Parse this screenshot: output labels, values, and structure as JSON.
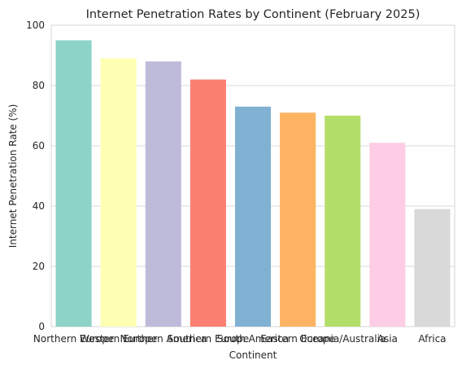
{
  "chart_data": {
    "type": "bar",
    "title": "Internet Penetration Rates by Continent (February 2025)",
    "xlabel": "Continent",
    "ylabel": "Internet Penetration Rate (%)",
    "categories": [
      "Northern Europe",
      "Western Europe",
      "Northern America",
      "Southern Europe",
      "South America",
      "Eastern Europe",
      "Oceania/Australia",
      "Asia",
      "Africa"
    ],
    "values": [
      95,
      89,
      88,
      82,
      73,
      71,
      70,
      61,
      39
    ],
    "colors": [
      "#8dd3c7",
      "#ffffb3",
      "#bebada",
      "#fb8072",
      "#80b1d3",
      "#fdb462",
      "#b3de69",
      "#fccde5",
      "#d9d9d9"
    ],
    "ylim": [
      0,
      100
    ],
    "yticks": [
      0,
      20,
      40,
      60,
      80,
      100
    ],
    "grid": true,
    "legend": "none"
  }
}
